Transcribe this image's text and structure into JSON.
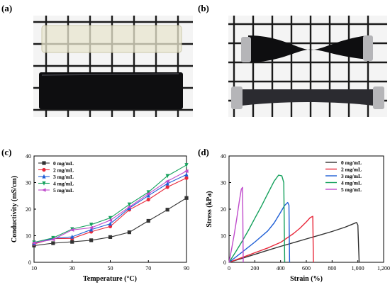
{
  "panels": {
    "a": "(a)",
    "b": "(b)",
    "c": "(c)",
    "d": "(d)"
  },
  "colors": {
    "grid_bg": "#f4f4f4",
    "grid_line": "#1a1a1a",
    "clear_gel": "#e9e6cf",
    "black_gel": "#0e0e10",
    "clip": "#b5b5b8"
  },
  "chart_data": [
    {
      "type": "line",
      "xlabel": "Temperature (°C)",
      "ylabel": "Conductivity (mS/cm)",
      "xlim": [
        10,
        90
      ],
      "ylim": [
        0,
        40
      ],
      "xticks": [
        "10",
        "30",
        "50",
        "70",
        "90"
      ],
      "yticks": [
        "0",
        "10",
        "20",
        "30",
        "40"
      ],
      "legend_position": "top-left",
      "x": [
        10,
        20,
        30,
        40,
        50,
        60,
        70,
        80,
        90
      ],
      "series": [
        {
          "name": "0 mg/mL",
          "color": "#333333",
          "marker": "square",
          "values": [
            6.3,
            7.2,
            7.7,
            8.3,
            9.5,
            11.3,
            15.6,
            19.8,
            24.2
          ]
        },
        {
          "name": "2 mg/mL",
          "color": "#e8283a",
          "marker": "circle",
          "values": [
            6.9,
            8.9,
            9.0,
            11.5,
            13.5,
            19.8,
            23.6,
            28.3,
            31.7
          ]
        },
        {
          "name": "3 mg/mL",
          "color": "#1f5fd6",
          "marker": "triangle-up",
          "values": [
            7.1,
            9.0,
            9.6,
            12.3,
            14.5,
            20.4,
            25.1,
            29.6,
            33.0
          ]
        },
        {
          "name": "4 mg/mL",
          "color": "#14a05c",
          "marker": "triangle-down",
          "values": [
            7.5,
            9.2,
            12.5,
            14.2,
            16.7,
            21.8,
            26.4,
            32.5,
            36.6
          ]
        },
        {
          "name": "5 mg/mL",
          "color": "#c04ccc",
          "marker": "triangle-left",
          "values": [
            7.3,
            8.6,
            12.2,
            13.0,
            15.8,
            20.8,
            25.8,
            30.5,
            34.3
          ]
        }
      ]
    },
    {
      "type": "line",
      "xlabel": "Strain (%)",
      "ylabel": "Stress (kPa)",
      "xlim": [
        0,
        1200
      ],
      "ylim": [
        0,
        40
      ],
      "xticks": [
        "0",
        "200",
        "400",
        "600",
        "800",
        "1,000",
        "1,200"
      ],
      "yticks": [
        "0",
        "10",
        "20",
        "30",
        "40"
      ],
      "legend_position": "top-right",
      "series": [
        {
          "name": "0 mg/mL",
          "color": "#333333",
          "x": [
            0,
            100,
            200,
            300,
            400,
            500,
            600,
            700,
            800,
            900,
            950,
            990,
            1000,
            1010
          ],
          "y": [
            0,
            1.5,
            3.0,
            4.5,
            6.0,
            7.4,
            8.8,
            10.2,
            11.6,
            13.2,
            14.2,
            15.0,
            14.0,
            0
          ]
        },
        {
          "name": "2 mg/mL",
          "color": "#e8283a",
          "x": [
            0,
            100,
            200,
            300,
            400,
            500,
            550,
            600,
            630,
            650,
            655
          ],
          "y": [
            0,
            1.8,
            3.6,
            5.4,
            7.5,
            10.8,
            12.8,
            15.2,
            16.8,
            17.3,
            0
          ]
        },
        {
          "name": "3 mg/mL",
          "color": "#1f5fd6",
          "x": [
            0,
            100,
            200,
            300,
            350,
            400,
            430,
            455,
            465,
            470
          ],
          "y": [
            0,
            3.8,
            7.6,
            11.8,
            14.8,
            18.8,
            21.3,
            22.5,
            21.5,
            0
          ]
        },
        {
          "name": "4 mg/mL",
          "color": "#14a05c",
          "x": [
            0,
            50,
            100,
            150,
            200,
            250,
            300,
            350,
            385,
            410,
            425,
            432
          ],
          "y": [
            0,
            3.8,
            7.8,
            12.0,
            16.5,
            21.0,
            25.8,
            30.5,
            32.8,
            32.5,
            30.0,
            0
          ]
        },
        {
          "name": "5 mg/mL",
          "color": "#c04ccc",
          "x": [
            0,
            20,
            40,
            60,
            80,
            95,
            105,
            110
          ],
          "y": [
            0,
            5.0,
            10.5,
            16.5,
            23.0,
            27.5,
            28.2,
            0
          ]
        }
      ]
    }
  ]
}
